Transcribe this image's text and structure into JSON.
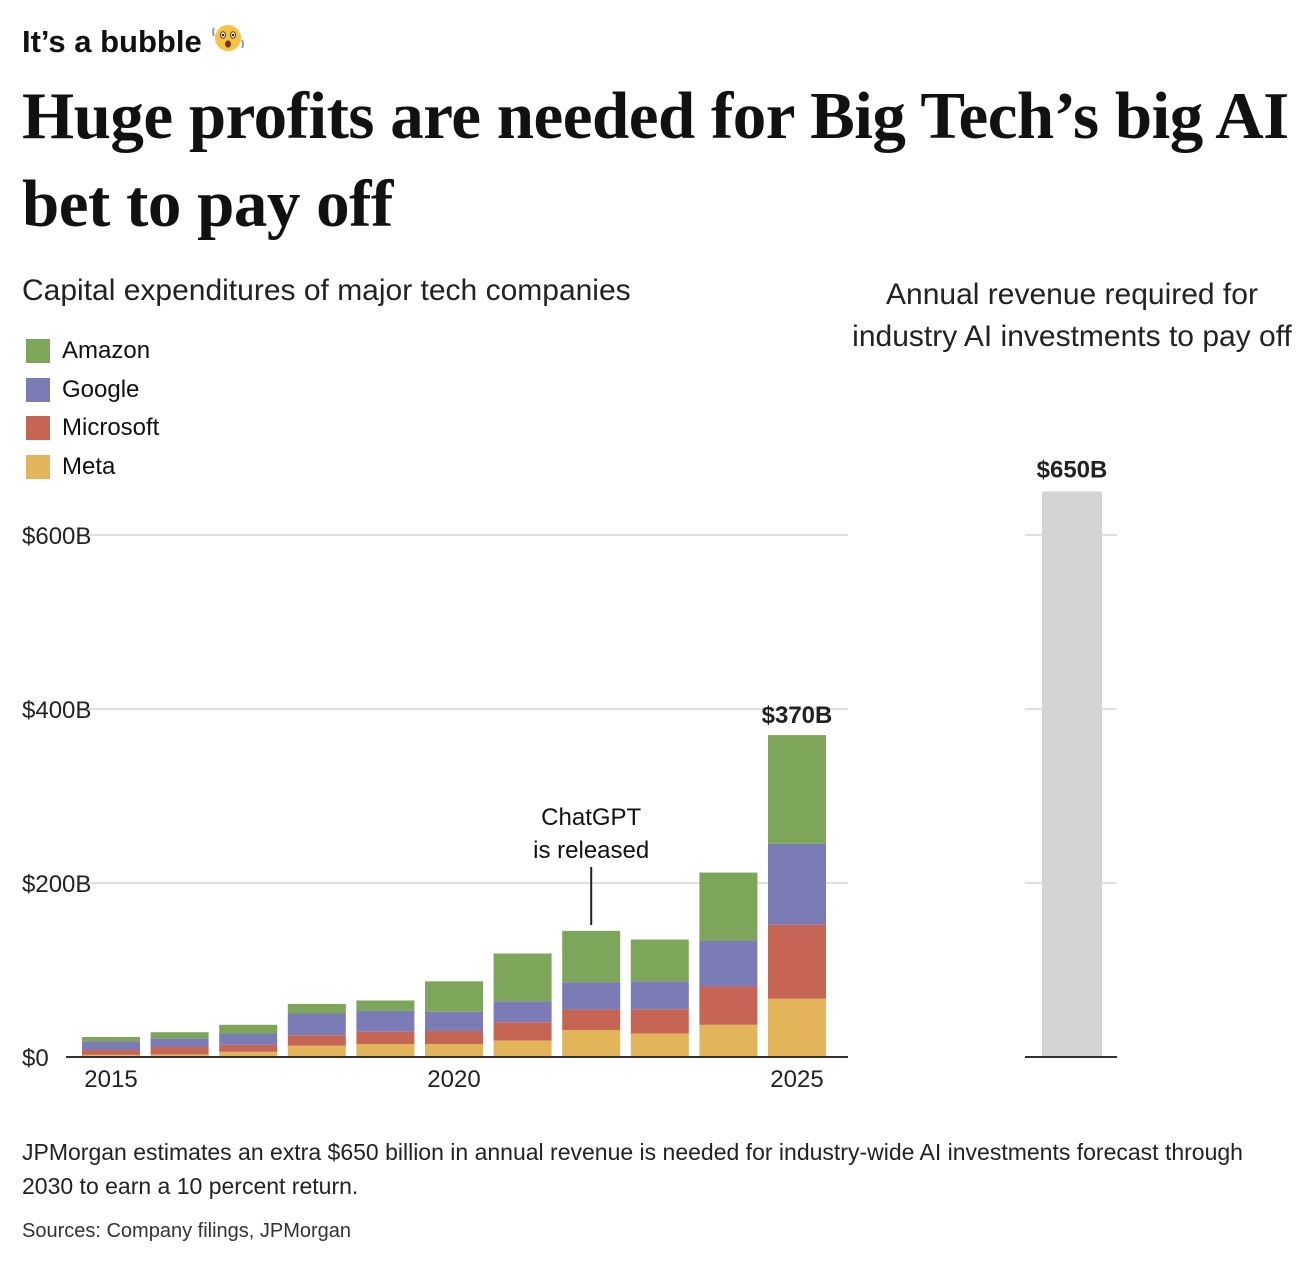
{
  "header": {
    "kicker": "It’s a bubble",
    "kicker_icon": "shaking-face-emoji",
    "title": "Huge profits are needed for Big Tech’s big AI bet to pay off"
  },
  "colors": {
    "Amazon": "#7ea65b",
    "Google": "#7b7bb5",
    "Microsoft": "#c66554",
    "Meta": "#e3b55a",
    "required_bar": "#d3d4d6",
    "grid": "#e0e0e0",
    "axis": "#333333"
  },
  "chart_data": [
    {
      "type": "bar",
      "stacked": true,
      "title": "Capital expenditures of major tech companies",
      "categories": [
        2015,
        2016,
        2017,
        2018,
        2019,
        2020,
        2021,
        2022,
        2023,
        2024,
        2025
      ],
      "x_tick_labels": [
        "2015",
        "2020",
        "2025"
      ],
      "series": [
        {
          "name": "Meta",
          "values": [
            2.5,
            3,
            6,
            13,
            15,
            15,
            19,
            31,
            27,
            37,
            67
          ]
        },
        {
          "name": "Microsoft",
          "values": [
            5.5,
            8.5,
            8,
            12,
            14,
            15,
            21,
            23.5,
            28,
            44,
            85
          ]
        },
        {
          "name": "Google",
          "values": [
            10,
            10,
            13,
            25,
            24,
            22,
            24,
            31.5,
            32,
            53,
            93
          ]
        },
        {
          "name": "Amazon",
          "values": [
            5,
            7,
            10,
            11,
            12,
            35,
            55,
            59,
            48,
            78,
            125
          ]
        }
      ],
      "legend_order": [
        "Amazon",
        "Google",
        "Microsoft",
        "Meta"
      ],
      "legend_placement": "top-left",
      "ylim": [
        0,
        600
      ],
      "y_ticks": [
        0,
        200,
        400,
        600
      ],
      "y_tick_labels": [
        "$0",
        "$200B",
        "$400B",
        "$600B"
      ],
      "grid": true,
      "data_labels": [
        {
          "category": 2025,
          "text": "$370B"
        }
      ],
      "annotations": [
        {
          "category": 2022,
          "lines": [
            "ChatGPT",
            "is released"
          ]
        }
      ]
    },
    {
      "type": "bar",
      "title": "Annual revenue required for industry AI investments to pay off",
      "values": [
        650
      ],
      "ylim": [
        0,
        600
      ],
      "data_labels": [
        "$650B"
      ],
      "grid": true
    }
  ],
  "footer": {
    "note": "JPMorgan estimates an extra $650 billion in annual revenue is needed for industry-wide AI investments forecast through 2030 to earn a 10 percent return.",
    "source": "Sources: Company filings, JPMorgan"
  }
}
